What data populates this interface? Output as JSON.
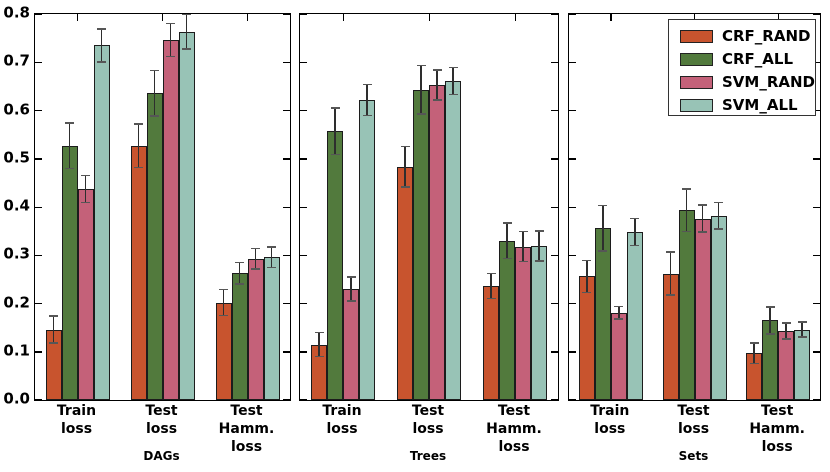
{
  "chart_data": {
    "type": "bar",
    "title": "",
    "ylim": [
      0.0,
      0.8
    ],
    "yticks": [
      "0.0",
      "0.1",
      "0.2",
      "0.3",
      "0.4",
      "0.5",
      "0.6",
      "0.7",
      "0.8"
    ],
    "grid": false,
    "legend_position": "upper-right-of-third-panel",
    "series": [
      "CRF_RAND",
      "CRF_ALL",
      "SVM_RAND",
      "SVM_ALL"
    ],
    "series_colors": [
      "#c8542e",
      "#527a3d",
      "#c46179",
      "#98c3b6"
    ],
    "bar_edge_color": "#1c1c1c",
    "categories": [
      [
        "Train",
        "loss"
      ],
      [
        "Test",
        "loss"
      ],
      [
        "Test",
        "Hamm.",
        "loss"
      ]
    ],
    "panels": [
      {
        "xlabel": "DAGs",
        "series": [
          {
            "name": "CRF_RAND",
            "values": [
              0.146,
              0.527,
              0.202
            ],
            "errors": [
              0.028,
              0.045,
              0.027
            ]
          },
          {
            "name": "CRF_ALL",
            "values": [
              0.527,
              0.636,
              0.263
            ],
            "errors": [
              0.047,
              0.047,
              0.022
            ]
          },
          {
            "name": "SVM_RAND",
            "values": [
              0.437,
              0.746,
              0.293
            ],
            "errors": [
              0.028,
              0.034,
              0.021
            ]
          },
          {
            "name": "SVM_ALL",
            "values": [
              0.735,
              0.763,
              0.296
            ],
            "errors": [
              0.034,
              0.036,
              0.021
            ]
          }
        ]
      },
      {
        "xlabel": "Trees",
        "series": [
          {
            "name": "CRF_RAND",
            "values": [
              0.115,
              0.483,
              0.236
            ],
            "errors": [
              0.025,
              0.042,
              0.026
            ]
          },
          {
            "name": "CRF_ALL",
            "values": [
              0.557,
              0.643,
              0.33
            ],
            "errors": [
              0.048,
              0.05,
              0.037
            ]
          },
          {
            "name": "SVM_RAND",
            "values": [
              0.23,
              0.653,
              0.318
            ],
            "errors": [
              0.025,
              0.031,
              0.031
            ]
          },
          {
            "name": "SVM_ALL",
            "values": [
              0.622,
              0.661,
              0.319
            ],
            "errors": [
              0.032,
              0.028,
              0.031
            ]
          }
        ]
      },
      {
        "xlabel": "Sets",
        "series": [
          {
            "name": "CRF_RAND",
            "values": [
              0.256,
              0.262,
              0.097
            ],
            "errors": [
              0.033,
              0.045,
              0.021
            ]
          },
          {
            "name": "CRF_ALL",
            "values": [
              0.356,
              0.393,
              0.165
            ],
            "errors": [
              0.047,
              0.044,
              0.028
            ]
          },
          {
            "name": "SVM_RAND",
            "values": [
              0.181,
              0.376,
              0.143
            ],
            "errors": [
              0.013,
              0.028,
              0.017
            ]
          },
          {
            "name": "SVM_ALL",
            "values": [
              0.348,
              0.382,
              0.146
            ],
            "errors": [
              0.028,
              0.027,
              0.016
            ]
          }
        ]
      }
    ]
  }
}
